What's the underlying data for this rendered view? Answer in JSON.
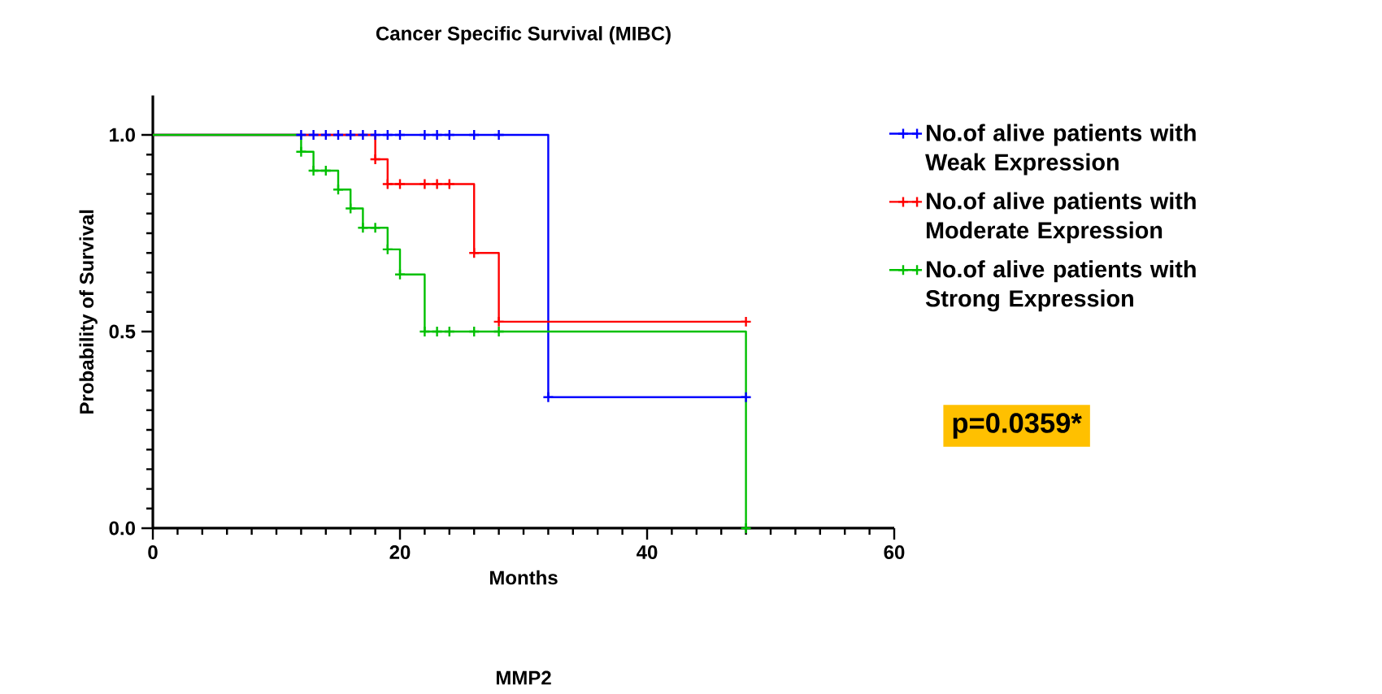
{
  "chart_data": {
    "type": "step",
    "title": "Cancer Specific Survival (MIBC)",
    "xlabel": "Months",
    "ylabel": "Probability of Survival",
    "annotations": [
      "MMP2",
      "p=0.0359*"
    ],
    "xlim": [
      0,
      60
    ],
    "xticks": [
      0,
      20,
      40,
      60
    ],
    "ylim": [
      0,
      1.1
    ],
    "yticks": [
      {
        "value": 0,
        "label": "0.0"
      },
      {
        "value": 0.5,
        "label": "0.5"
      },
      {
        "value": 1,
        "label": "1.0"
      }
    ],
    "legend": "right",
    "grid": false,
    "marker": "cross",
    "series": [
      {
        "name": "No.of alive patients with Weak Expression",
        "color": "#0000ff",
        "x": [
          0,
          12,
          13,
          14,
          15,
          16,
          17,
          18,
          19,
          20,
          22,
          23,
          24,
          26,
          28,
          32,
          48
        ],
        "values": [
          1,
          1,
          1,
          1,
          1,
          1,
          1,
          1,
          1,
          1,
          1,
          1,
          1,
          1,
          1,
          0.333,
          0.333
        ]
      },
      {
        "name": "No.of alive patients with Moderate Expression",
        "color": "#ff0000",
        "x": [
          0,
          18,
          19,
          20,
          22,
          23,
          24,
          26,
          28,
          48
        ],
        "values": [
          1,
          0.938,
          0.875,
          0.875,
          0.875,
          0.875,
          0.875,
          0.7,
          0.525,
          0.525
        ]
      },
      {
        "name": "No.of alive patients with Strong Expression",
        "color": "#00c000",
        "x": [
          0,
          12,
          13,
          14,
          15,
          16,
          17,
          18,
          19,
          20,
          22,
          23,
          24,
          26,
          28,
          48
        ],
        "values": [
          1,
          0.957,
          0.909,
          0.909,
          0.861,
          0.813,
          0.764,
          0.764,
          0.709,
          0.645,
          0.5,
          0.5,
          0.5,
          0.5,
          0.5,
          0
        ]
      }
    ]
  }
}
